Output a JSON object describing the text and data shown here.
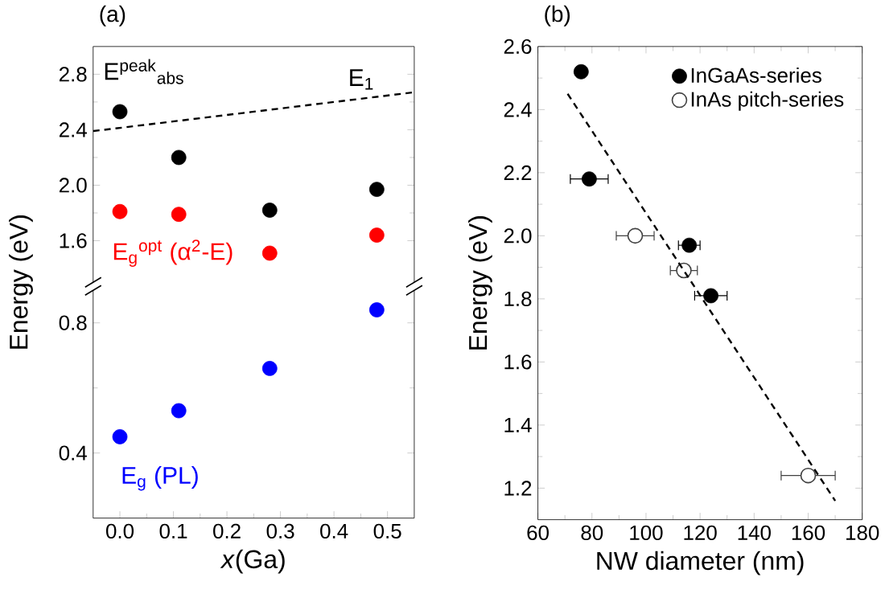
{
  "chart_data": [
    {
      "type": "scatter",
      "title": "(a)",
      "ylabel": "Energy (eV)",
      "xlim": [
        -0.05,
        0.55
      ],
      "ylim": [
        1.3,
        3.0
      ],
      "yticks": [
        1.6,
        {
          "value": 2.0,
          "label": "2.0"
        },
        2.4,
        2.8
      ],
      "tick_labels": "y",
      "marker": "circle",
      "x": [
        0,
        0.11,
        0.28,
        0.48
      ],
      "series": [
        {
          "name": "E$^{peak}$$_{abs}$",
          "color": "#000000",
          "values": [
            2.53,
            2.2,
            1.82,
            1.97
          ]
        },
        {
          "name": "E$_{g}$$^{opt}$ (α$^{2}$-E)",
          "color": "#ff0000",
          "values": [
            1.81,
            1.79,
            1.51,
            1.64
          ]
        },
        {
          "type": "line",
          "name": "E$_{1}$",
          "color": "#000000",
          "line_style": "dashed",
          "marker": "none",
          "x": [
            -0.05,
            0.55
          ],
          "values": [
            2.39,
            2.67
          ]
        }
      ]
    },
    {
      "type": "scatter",
      "xlabel": "*x*(Ga)",
      "xlim": [
        -0.05,
        0.55
      ],
      "xticks": [
        {
          "value": 0,
          "label": "0.0"
        },
        0.1,
        0.2,
        0.3,
        0.4,
        0.5
      ],
      "ylim": [
        0.2,
        0.9
      ],
      "yticks": [
        0.4,
        0.8
      ],
      "marker": "circle",
      "x": [
        0,
        0.11,
        0.28,
        0.48
      ],
      "series": [
        {
          "name": "E$_{g}$ (PL)",
          "color": "#0000ff",
          "values": [
            0.45,
            0.53,
            0.66,
            0.84
          ]
        }
      ]
    },
    {
      "type": "scatter",
      "title": "(b)",
      "xlabel": "NW diameter (nm)",
      "ylabel": "Energy (eV)",
      "xlim": [
        60,
        180
      ],
      "xticks": [
        60,
        80,
        100,
        120,
        140,
        160,
        180
      ],
      "ylim": [
        1.1,
        2.6
      ],
      "yticks": [
        1.2,
        1.4,
        1.6,
        1.8,
        {
          "value": 2.0,
          "label": "2.0"
        },
        2.2,
        2.4,
        2.6
      ],
      "legend": "top right",
      "marker": "circle",
      "series": [
        {
          "name": "InGaAs-series",
          "color": "#000000",
          "x": [
            76,
            79,
            116,
            124
          ],
          "values": [
            2.52,
            2.18,
            1.97,
            1.81
          ],
          "xerrors": [
            null,
            7,
            4,
            6
          ]
        },
        {
          "name": "InAs pitch-series",
          "color": "#404040",
          "marker": "open circle",
          "x": [
            96,
            114,
            160
          ],
          "values": [
            2.0,
            1.89,
            1.24
          ],
          "xerrors": [
            7,
            5,
            10
          ]
        },
        {
          "type": "line",
          "color": "#000000",
          "line_style": "dashed",
          "marker": "none",
          "x": [
            71,
            170
          ],
          "values": [
            2.45,
            1.16
          ]
        }
      ]
    }
  ]
}
